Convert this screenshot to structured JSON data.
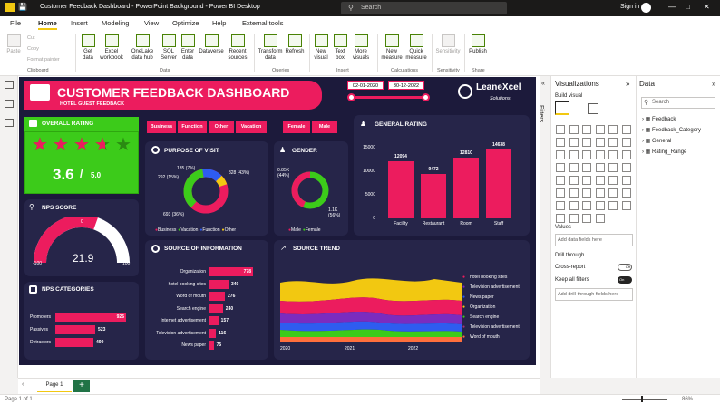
{
  "window": {
    "title": "Customer Feedback Dashboard - PowerPoint Background - Power BI Desktop",
    "search_placeholder": "Search",
    "signin": "Sign in"
  },
  "menu": [
    "File",
    "Home",
    "Insert",
    "Modeling",
    "View",
    "Optimize",
    "Help",
    "External tools"
  ],
  "ribbon": {
    "clipboard": {
      "paste": "Paste",
      "cut": "Cut",
      "copy": "Copy",
      "format_painter": "Format painter",
      "group": "Clipboard"
    },
    "data": {
      "get_data": "Get data",
      "excel": "Excel workbook",
      "onelake": "OneLake data hub",
      "sql": "SQL Server",
      "enter": "Enter data",
      "dataverse": "Dataverse",
      "recent": "Recent sources",
      "group": "Data"
    },
    "queries": {
      "transform": "Transform data",
      "refresh": "Refresh",
      "group": "Queries"
    },
    "insert": {
      "new_visual": "New visual",
      "text_box": "Text box",
      "more": "More visuals",
      "group": "Insert"
    },
    "calc": {
      "new_measure": "New measure",
      "quick_measure": "Quick measure",
      "group": "Calculations"
    },
    "sens": {
      "label": "Sensitivity",
      "group": "Sensitivity"
    },
    "share": {
      "publish": "Publish",
      "group": "Share"
    }
  },
  "dashboard": {
    "title": "CUSTOMER FEEDBACK DASHBOARD",
    "subtitle": "HOTEL GUEST FEEDBACK",
    "date_start": "02-01-2020",
    "date_end": "30-12-2022",
    "logo": "LeaneXcel",
    "logo_sub": "Solutions",
    "filters_a": [
      "Business",
      "Function",
      "Other",
      "Vacation"
    ],
    "filters_b": [
      "Female",
      "Male"
    ],
    "overall_rating": {
      "title": "OVERALL RATING",
      "value": "3.6",
      "max": "5.0",
      "stars": 3.6
    },
    "nps_score": {
      "title": "NPS SCORE",
      "value": "21.9",
      "min": "-100",
      "max": "100",
      "mid": "0",
      "fraction": 0.61
    },
    "nps_categories": {
      "title": "NPS CATEGORIES",
      "items": [
        {
          "label": "Promoters",
          "value": 926
        },
        {
          "label": "Passives",
          "value": 523
        },
        {
          "label": "Detractors",
          "value": 499
        }
      ]
    },
    "purpose": {
      "title": "PURPOSE OF VISIT",
      "labels": [
        "135 (7%)",
        "292 (15%)",
        "828 (43%)",
        "693 (36%)"
      ],
      "legend": [
        "Business",
        "Vacation",
        "Function",
        "Other"
      ],
      "colors": {
        "business": "#ec1c5e",
        "vacation": "#3ccb1a",
        "function": "#2e5cf0",
        "other": "#f2c811"
      }
    },
    "gender": {
      "title": "GENDER",
      "male_label": "0.85K (44%)",
      "female_label": "1.1K (56%)",
      "legend": [
        "Male",
        "Female"
      ]
    },
    "general_rating": {
      "title": "GENERAL RATING"
    },
    "source_info": {
      "title": "SOURCE OF INFORMATION"
    },
    "source_trend": {
      "title": "SOURCE TREND",
      "legend": [
        "hotel booking sites",
        "Television advertisement",
        "News paper",
        "Organization",
        "Search engine",
        "Television advertisement",
        "Word of mouth"
      ],
      "x_ticks": [
        "2020",
        "2021",
        "2022"
      ]
    }
  },
  "chart_data": [
    {
      "type": "bar",
      "title": "GENERAL RATING",
      "categories": [
        "Facility",
        "Restaurant",
        "Room",
        "Staff"
      ],
      "values": [
        12094,
        9472,
        12810,
        14638
      ],
      "ylim": [
        0,
        15000
      ],
      "yticks": [
        "0",
        "5000",
        "10000",
        "15000"
      ]
    },
    {
      "type": "bar",
      "title": "SOURCE OF INFORMATION",
      "categories": [
        "Organization",
        "hotel booking sites",
        "Word of mouth",
        "Search engine",
        "Internet advertisement",
        "Television advertisement",
        "News paper"
      ],
      "values": [
        778,
        340,
        276,
        240,
        157,
        116,
        75
      ]
    },
    {
      "type": "bar",
      "title": "NPS CATEGORIES",
      "categories": [
        "Promoters",
        "Passives",
        "Detractors"
      ],
      "values": [
        926,
        523,
        499
      ]
    }
  ],
  "panes": {
    "visualizations": "Visualizations",
    "build_visual": "Build visual",
    "values": "Values",
    "add_data": "Add data fields here",
    "drill": "Drill through",
    "cross": "Cross-report",
    "cross_state": "Off",
    "keep": "Keep all filters",
    "keep_state": "On",
    "add_drill": "Add drill-through fields here",
    "filters": "Filters",
    "data": "Data",
    "search": "Search",
    "fields": [
      "Feedback",
      "Feedback_Category",
      "General",
      "Rating_Range"
    ]
  },
  "footer": {
    "page_tab": "Page 1",
    "status": "Page 1 of 1",
    "zoom": "86%"
  }
}
